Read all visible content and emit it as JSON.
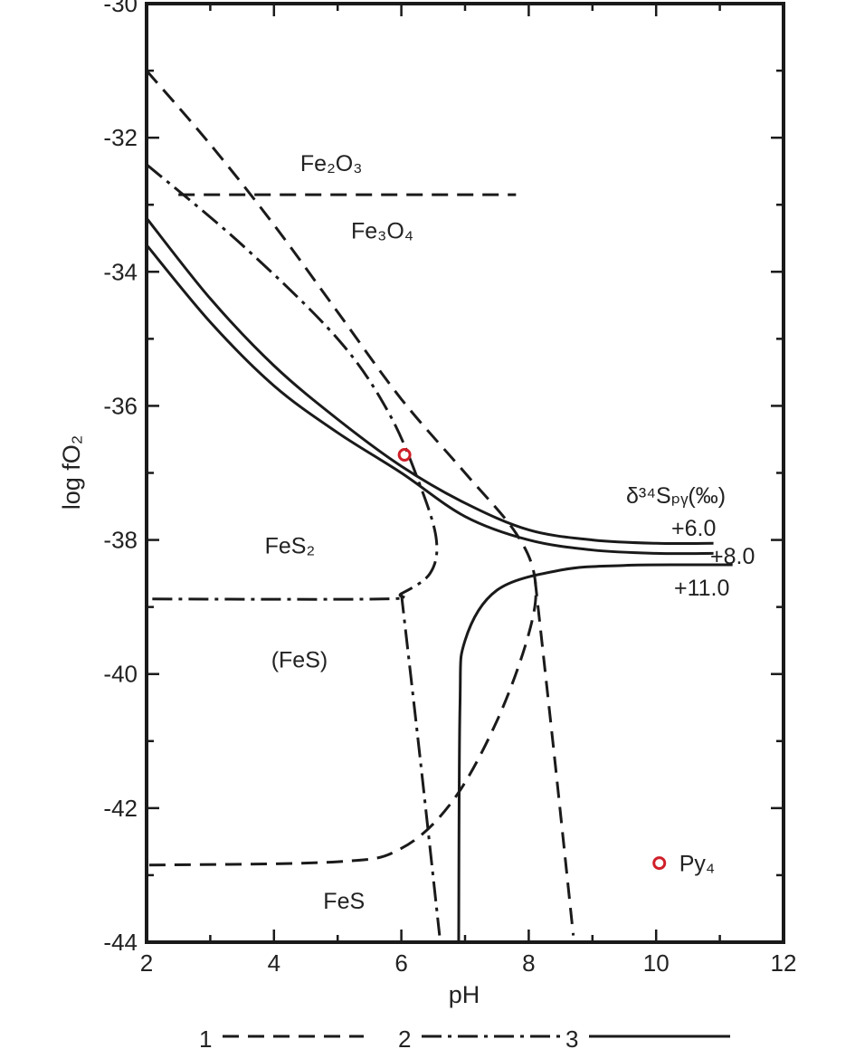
{
  "chart_data": {
    "type": "line",
    "xlabel": "pH",
    "ylabel": "log fO₂",
    "xlim": [
      2,
      12
    ],
    "ylim": [
      -44,
      -30
    ],
    "x_ticks": [
      2,
      4,
      6,
      8,
      10,
      12
    ],
    "y_ticks": [
      -30,
      -32,
      -34,
      -36,
      -38,
      -40,
      -42,
      -44
    ],
    "grid": false,
    "region_labels": [
      {
        "text": "Fe₂O₃",
        "x": 4.9,
        "y": -32.5
      },
      {
        "text": "Fe₃O₄",
        "x": 5.7,
        "y": -33.5
      },
      {
        "text": "FeS₂",
        "x": 4.25,
        "y": -38.2
      },
      {
        "text": "(FeS)",
        "x": 4.4,
        "y": -39.9
      },
      {
        "text": "FeS",
        "x": 5.1,
        "y": -43.5
      }
    ],
    "annotations": {
      "isotope_header": "δ³⁴Sₚᵧ(‰)",
      "isotope_values": [
        "+6.0",
        "+8.0",
        "+11.0"
      ]
    },
    "series": [
      {
        "style": "dashed",
        "points": [
          [
            2,
            -31
          ],
          [
            3,
            -32.1
          ],
          [
            4,
            -33.3
          ],
          [
            5,
            -34.6
          ],
          [
            6,
            -35.9
          ],
          [
            7,
            -37.0
          ],
          [
            7.8,
            -37.9
          ],
          [
            8.1,
            -38.6
          ],
          [
            8.0,
            -39.4
          ],
          [
            7.5,
            -40.7
          ],
          [
            6.8,
            -41.9
          ],
          [
            6.0,
            -42.6
          ],
          [
            5.0,
            -42.8
          ],
          [
            2,
            -42.85
          ]
        ]
      },
      {
        "style": "dashed",
        "points": [
          [
            2.5,
            -32.85
          ],
          [
            7.8,
            -32.85
          ]
        ]
      },
      {
        "style": "dashed",
        "points": [
          [
            8.1,
            -38.6
          ],
          [
            8.4,
            -41.2
          ],
          [
            8.7,
            -43.9
          ]
        ]
      },
      {
        "style": "dash-dot",
        "points": [
          [
            2,
            -32.4
          ],
          [
            3.5,
            -33.6
          ],
          [
            5,
            -35.0
          ],
          [
            5.8,
            -36.1
          ],
          [
            6.3,
            -37.2
          ],
          [
            6.55,
            -38.0
          ],
          [
            6.45,
            -38.5
          ],
          [
            6.0,
            -38.8
          ],
          [
            5.7,
            -38.88
          ],
          [
            2,
            -38.88
          ]
        ]
      },
      {
        "style": "dash-dot",
        "points": [
          [
            6.0,
            -38.8
          ],
          [
            6.3,
            -41.3
          ],
          [
            6.6,
            -43.9
          ]
        ]
      },
      {
        "style": "solid",
        "name": "+6.0",
        "points": [
          [
            2,
            -33.2
          ],
          [
            3,
            -34.4
          ],
          [
            4,
            -35.4
          ],
          [
            5,
            -36.2
          ],
          [
            6,
            -36.9
          ],
          [
            7,
            -37.45
          ],
          [
            8,
            -37.85
          ],
          [
            9,
            -38.0
          ],
          [
            10,
            -38.05
          ],
          [
            10.9,
            -38.05
          ]
        ]
      },
      {
        "style": "solid",
        "name": "+8.0",
        "points": [
          [
            2,
            -33.6
          ],
          [
            3,
            -34.75
          ],
          [
            4,
            -35.7
          ],
          [
            5,
            -36.4
          ],
          [
            6,
            -37.0
          ],
          [
            7,
            -37.65
          ],
          [
            8,
            -38.0
          ],
          [
            9,
            -38.15
          ],
          [
            10,
            -38.2
          ],
          [
            10.9,
            -38.2
          ]
        ]
      },
      {
        "style": "solid",
        "name": "+11.0",
        "points": [
          [
            6.9,
            -44
          ],
          [
            6.92,
            -40.5
          ],
          [
            7.0,
            -39.5
          ],
          [
            7.5,
            -38.75
          ],
          [
            8.5,
            -38.45
          ],
          [
            9.5,
            -38.38
          ],
          [
            10.5,
            -38.37
          ],
          [
            11.2,
            -38.37
          ]
        ]
      }
    ],
    "points": [
      {
        "x": 6.05,
        "y": -36.73,
        "label": ""
      },
      {
        "x": 10.05,
        "y": -42.82,
        "label": "Py₄"
      }
    ],
    "marker_color": "#d0202a",
    "legend": {
      "position": "bottom",
      "entries": [
        {
          "label": "1",
          "style": "dashed"
        },
        {
          "label": "2",
          "style": "dash-dot"
        },
        {
          "label": "3",
          "style": "solid"
        }
      ]
    }
  }
}
